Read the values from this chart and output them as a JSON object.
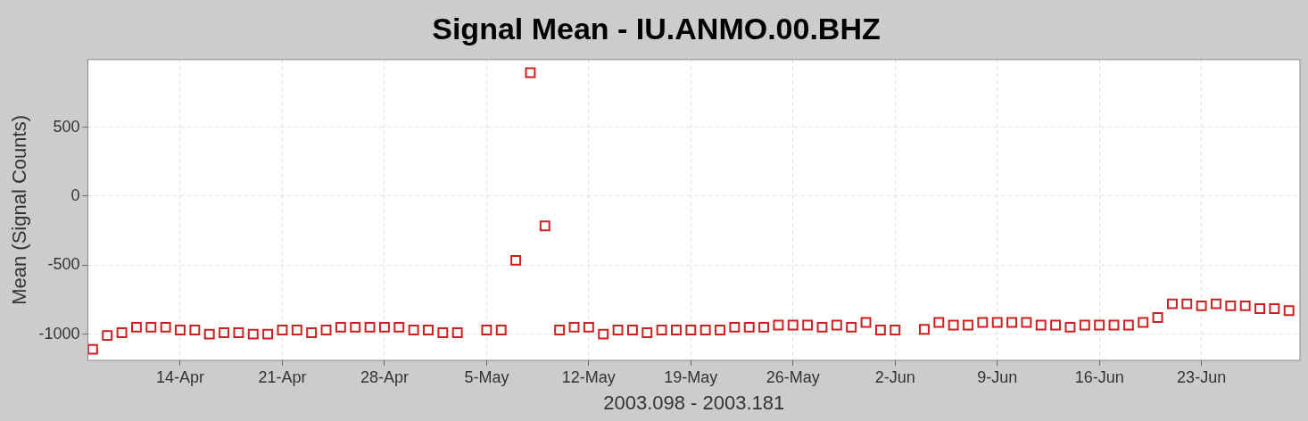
{
  "chart_data": {
    "type": "scatter",
    "title": "Signal Mean - IU.ANMO.00.BHZ",
    "xlabel": "2003.098 - 2003.181",
    "ylabel": "Mean (Signal Counts)",
    "x": [
      "2003-04-08",
      "2003-04-09",
      "2003-04-10",
      "2003-04-11",
      "2003-04-12",
      "2003-04-13",
      "2003-04-14",
      "2003-04-15",
      "2003-04-16",
      "2003-04-17",
      "2003-04-18",
      "2003-04-19",
      "2003-04-20",
      "2003-04-21",
      "2003-04-22",
      "2003-04-23",
      "2003-04-24",
      "2003-04-25",
      "2003-04-26",
      "2003-04-27",
      "2003-04-28",
      "2003-04-29",
      "2003-04-30",
      "2003-05-01",
      "2003-05-02",
      "2003-05-03",
      "2003-05-04",
      "2003-05-05",
      "2003-05-06",
      "2003-05-07",
      "2003-05-08",
      "2003-05-09",
      "2003-05-10",
      "2003-05-11",
      "2003-05-12",
      "2003-05-13",
      "2003-05-14",
      "2003-05-15",
      "2003-05-16",
      "2003-05-17",
      "2003-05-18",
      "2003-05-19",
      "2003-05-20",
      "2003-05-21",
      "2003-05-22",
      "2003-05-23",
      "2003-05-24",
      "2003-05-25",
      "2003-05-26",
      "2003-05-27",
      "2003-05-28",
      "2003-05-29",
      "2003-05-30",
      "2003-05-31",
      "2003-06-01",
      "2003-06-02",
      "2003-06-03",
      "2003-06-04",
      "2003-06-05",
      "2003-06-06",
      "2003-06-07",
      "2003-06-08",
      "2003-06-09",
      "2003-06-10",
      "2003-06-11",
      "2003-06-12",
      "2003-06-13",
      "2003-06-14",
      "2003-06-15",
      "2003-06-16",
      "2003-06-17",
      "2003-06-18",
      "2003-06-19",
      "2003-06-20",
      "2003-06-21",
      "2003-06-22",
      "2003-06-23",
      "2003-06-24",
      "2003-06-25",
      "2003-06-26",
      "2003-06-27",
      "2003-06-28",
      "2003-06-29"
    ],
    "series": [
      {
        "color": "#cc1f1f",
        "values": [
          -1110,
          -1010,
          -990,
          -950,
          -950,
          -950,
          -970,
          -970,
          -1000,
          -990,
          -990,
          -1000,
          -1000,
          -970,
          -970,
          -990,
          -970,
          -950,
          -950,
          -950,
          -950,
          -950,
          -970,
          -970,
          -990,
          -990,
          null,
          -970,
          -970,
          -465,
          895,
          -215,
          -970,
          -950,
          -950,
          -1000,
          -970,
          -970,
          -990,
          -970,
          -970,
          -970,
          -970,
          -970,
          -950,
          -950,
          -950,
          -935,
          -935,
          -935,
          -950,
          -935,
          -950,
          -915,
          -970,
          -970,
          null,
          -965,
          -915,
          -935,
          -935,
          -915,
          -915,
          -915,
          -915,
          -935,
          -935,
          -950,
          -935,
          -935,
          -935,
          -935,
          -915,
          -880,
          -780,
          -780,
          -795,
          -780,
          -795,
          -795,
          -815,
          -815,
          -830
        ]
      }
    ],
    "xlim": [
      "2003-04-07T16:00",
      "2003-06-29T18:00"
    ],
    "xticks": [
      {
        "value": "2003-04-14",
        "label": "14-Apr"
      },
      {
        "value": "2003-04-21",
        "label": "21-Apr"
      },
      {
        "value": "2003-04-28",
        "label": "28-Apr"
      },
      {
        "value": "2003-05-05",
        "label": "5-May"
      },
      {
        "value": "2003-05-12",
        "label": "12-May"
      },
      {
        "value": "2003-05-19",
        "label": "19-May"
      },
      {
        "value": "2003-05-26",
        "label": "26-May"
      },
      {
        "value": "2003-06-02",
        "label": "2-Jun"
      },
      {
        "value": "2003-06-09",
        "label": "9-Jun"
      },
      {
        "value": "2003-06-16",
        "label": "16-Jun"
      },
      {
        "value": "2003-06-23",
        "label": "23-Jun"
      }
    ],
    "ylim": [
      -1190,
      990
    ],
    "yticks": [
      -1000,
      -500,
      0,
      500
    ],
    "grid": true,
    "marker": "square",
    "legend": false
  }
}
